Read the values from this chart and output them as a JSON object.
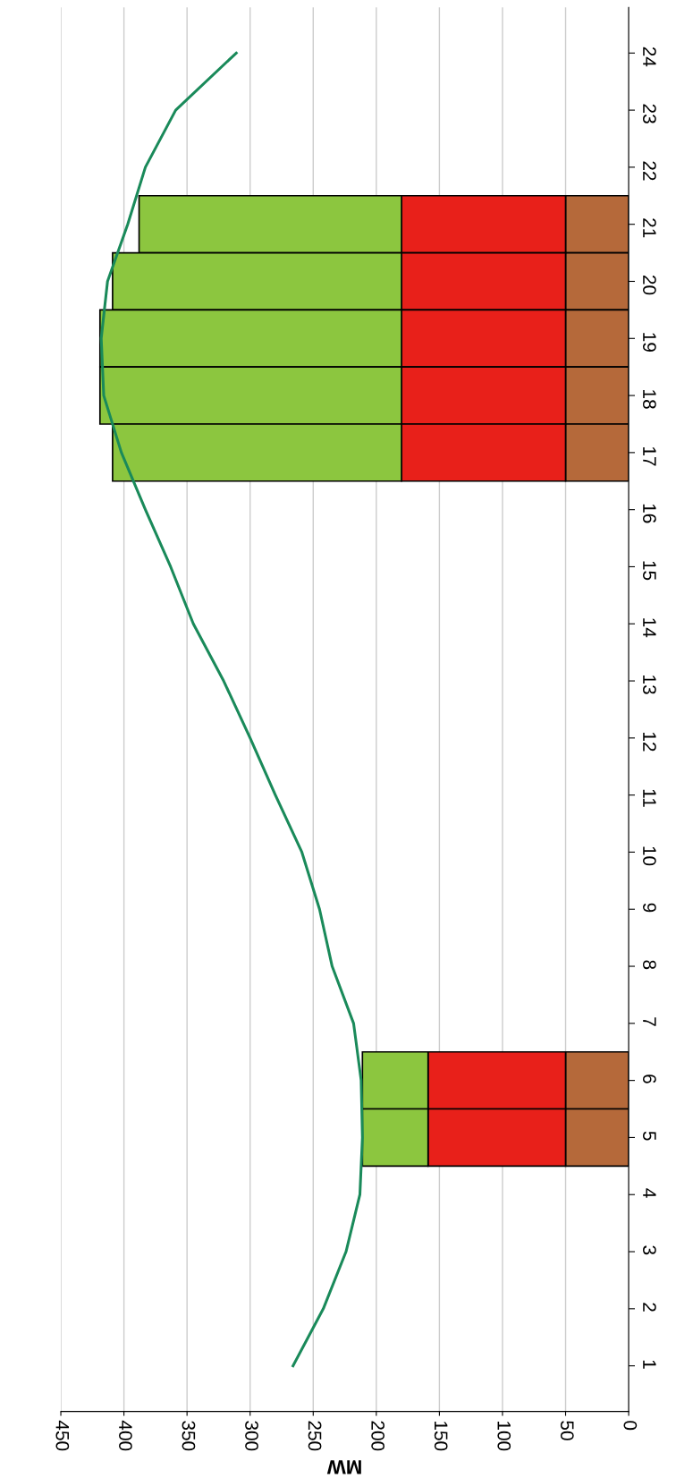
{
  "chart_data": {
    "type": "bar",
    "orientation": "horizontal",
    "stacked": true,
    "xlabel": "MW",
    "categories": [
      "24",
      "23",
      "22",
      "21",
      "20",
      "19",
      "18",
      "17",
      "16",
      "15",
      "14",
      "13",
      "12",
      "11",
      "10",
      "9",
      "8",
      "7",
      "6",
      "5",
      "4",
      "3",
      "2",
      "1"
    ],
    "series": [
      {
        "color": "#b5693a",
        "values": [
          null,
          null,
          null,
          50,
          50,
          50,
          50,
          50,
          null,
          null,
          null,
          null,
          null,
          null,
          null,
          null,
          null,
          null,
          50,
          50,
          null,
          null,
          null,
          null
        ]
      },
      {
        "color": "#e8201a",
        "values": [
          null,
          null,
          null,
          130,
          130,
          130,
          130,
          130,
          null,
          null,
          null,
          null,
          null,
          null,
          null,
          null,
          null,
          null,
          109,
          109,
          null,
          null,
          null,
          null
        ]
      },
      {
        "color": "#8cc63f",
        "values": [
          null,
          null,
          null,
          208,
          229,
          239,
          239,
          229,
          null,
          null,
          null,
          null,
          null,
          null,
          null,
          null,
          null,
          null,
          52,
          52,
          null,
          null,
          null,
          null
        ]
      },
      {
        "type": "line",
        "color": "#1a8a5a",
        "values": [
          311,
          359,
          383,
          397,
          413,
          418,
          416,
          402,
          383,
          363,
          345,
          321,
          300,
          280,
          259,
          245,
          235,
          218,
          212,
          211,
          213,
          224,
          242,
          266
        ]
      }
    ],
    "xlim": [
      450,
      0
    ],
    "xticks": [
      0,
      50,
      100,
      150,
      200,
      250,
      300,
      350,
      400,
      450
    ],
    "grid": "x"
  }
}
